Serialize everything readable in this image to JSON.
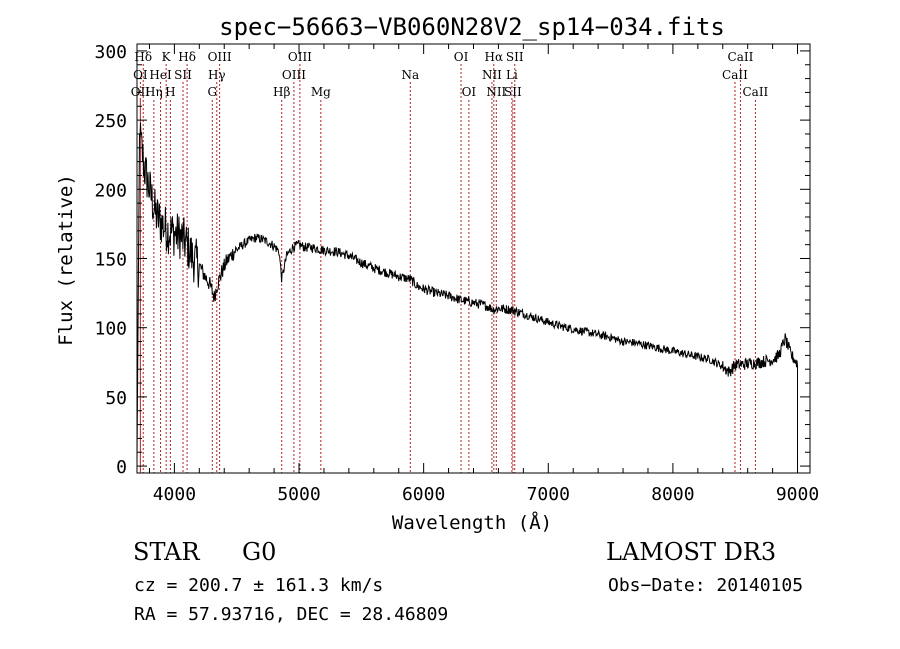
{
  "chart_data": {
    "type": "line",
    "title": "spec−56663−VB060N28V2_sp14−034.fits",
    "xlabel": "Wavelength (Å)",
    "ylabel": "Flux (relative)",
    "xlim": [
      3700,
      9100
    ],
    "ylim": [
      -5,
      305
    ],
    "xticks": [
      4000,
      5000,
      6000,
      7000,
      8000,
      9000
    ],
    "yticks": [
      0,
      50,
      100,
      150,
      200,
      250,
      300
    ],
    "line_color": "#000000",
    "marker_color": "#b22222",
    "spectrum_keypoints": {
      "x": [
        3700,
        3720,
        3760,
        3800,
        3850,
        3900,
        3950,
        4000,
        4050,
        4100,
        4150,
        4200,
        4240,
        4280,
        4320,
        4340,
        4380,
        4420,
        4480,
        4550,
        4600,
        4650,
        4700,
        4750,
        4800,
        4840,
        4861,
        4900,
        4950,
        5000,
        5050,
        5100,
        5150,
        5200,
        5300,
        5400,
        5500,
        5600,
        5700,
        5800,
        5893,
        5950,
        6000,
        6100,
        6200,
        6300,
        6400,
        6500,
        6563,
        6600,
        6700,
        6800,
        6900,
        7000,
        7100,
        7200,
        7300,
        7400,
        7500,
        7600,
        7700,
        7800,
        7900,
        8000,
        8100,
        8200,
        8300,
        8400,
        8450,
        8500,
        8600,
        8700,
        8750,
        8800,
        8850,
        8900,
        8950,
        9000
      ],
      "flux": [
        5,
        240,
        215,
        200,
        182,
        175,
        170,
        168,
        166,
        160,
        150,
        145,
        138,
        132,
        122,
        130,
        140,
        148,
        155,
        160,
        163,
        165,
        164,
        162,
        159,
        155,
        135,
        152,
        158,
        160,
        158,
        158,
        157,
        156,
        155,
        152,
        147,
        143,
        140,
        137,
        135,
        130,
        128,
        125,
        123,
        120,
        118,
        116,
        113,
        114,
        113,
        110,
        107,
        104,
        101,
        99,
        97,
        95,
        93,
        90,
        89,
        87,
        85,
        83,
        81,
        79,
        77,
        72,
        68,
        73,
        74,
        75,
        76,
        77,
        80,
        92,
        80,
        74
      ]
    },
    "line_markers": [
      {
        "label": "Hδ",
        "x": 3750,
        "row": 1
      },
      {
        "label": "K",
        "x": 3934,
        "row": 1
      },
      {
        "label": "Hδ",
        "x": 4102,
        "row": 1
      },
      {
        "label": "OIII",
        "x": 4363,
        "row": 1
      },
      {
        "label": "OIII",
        "x": 5007,
        "row": 1
      },
      {
        "label": "OI",
        "x": 6300,
        "row": 1
      },
      {
        "label": "Hα",
        "x": 6563,
        "row": 1
      },
      {
        "label": "SII",
        "x": 6731,
        "row": 1
      },
      {
        "label": "CaII",
        "x": 8542,
        "row": 1
      },
      {
        "label": "OI",
        "x": 3727,
        "row": 2
      },
      {
        "label": "HeI",
        "x": 3889,
        "row": 2
      },
      {
        "label": "SII",
        "x": 4069,
        "row": 2
      },
      {
        "label": "Hγ",
        "x": 4340,
        "row": 2
      },
      {
        "label": "OIII",
        "x": 4959,
        "row": 2
      },
      {
        "label": "Na",
        "x": 5893,
        "row": 2
      },
      {
        "label": "NII",
        "x": 6548,
        "row": 2
      },
      {
        "label": "Li",
        "x": 6708,
        "row": 2
      },
      {
        "label": "CaII",
        "x": 8498,
        "row": 2
      },
      {
        "label": "OII",
        "x": 3727,
        "row": 3
      },
      {
        "label": "Hη",
        "x": 3835,
        "row": 3
      },
      {
        "label": "H",
        "x": 3968,
        "row": 3
      },
      {
        "label": "G",
        "x": 4304,
        "row": 3
      },
      {
        "label": "Hβ",
        "x": 4861,
        "row": 3
      },
      {
        "label": "Mg",
        "x": 5175,
        "row": 3
      },
      {
        "label": "OI",
        "x": 6363,
        "row": 3
      },
      {
        "label": "NII",
        "x": 6583,
        "row": 3
      },
      {
        "label": "SII",
        "x": 6716,
        "row": 3
      },
      {
        "label": "CaII",
        "x": 8662,
        "row": 3
      }
    ]
  },
  "info": {
    "object_class": "STAR",
    "subclass": "G0",
    "survey": "LAMOST DR3",
    "cz_line": "cz = 200.7 ± 161.3 km/s",
    "obs_date": "Obs−Date: 20140105",
    "coords": "RA =  57.93716, DEC =  28.46809"
  }
}
